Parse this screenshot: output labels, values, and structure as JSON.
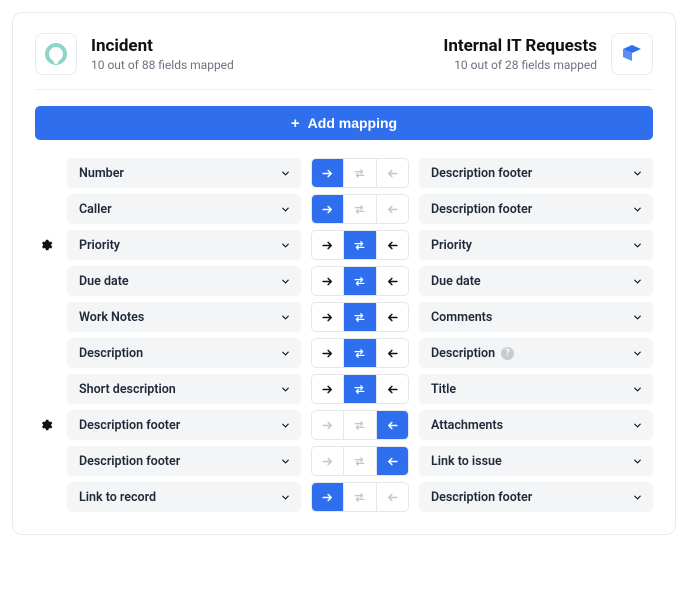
{
  "colors": {
    "primary": "#2f6fed",
    "field_bg": "#f3f5f7",
    "border": "#e9ecef",
    "muted_arrow": "#c3c8cf",
    "dark_arrow": "#111111",
    "text_muted": "#6b7280"
  },
  "header": {
    "left": {
      "title": "Incident",
      "subtitle": "10 out of 88 fields mapped",
      "icon_color": "#8fd4c7"
    },
    "right": {
      "title": "Internal IT Requests",
      "subtitle": "10 out of 28 fields mapped",
      "icon_color": "#2f6fed"
    }
  },
  "add_button": "Add mapping",
  "direction_options": [
    "right",
    "both",
    "left"
  ],
  "rows": [
    {
      "gear": false,
      "left": "Number",
      "right": "Description footer",
      "active": "right",
      "enabled": [
        "right"
      ],
      "info": false
    },
    {
      "gear": false,
      "left": "Caller",
      "right": "Description footer",
      "active": "right",
      "enabled": [
        "right"
      ],
      "info": false
    },
    {
      "gear": true,
      "left": "Priority",
      "right": "Priority",
      "active": "both",
      "enabled": [
        "right",
        "both",
        "left"
      ],
      "info": false
    },
    {
      "gear": false,
      "left": "Due date",
      "right": "Due date",
      "active": "both",
      "enabled": [
        "right",
        "both",
        "left"
      ],
      "info": false
    },
    {
      "gear": false,
      "left": "Work Notes",
      "right": "Comments",
      "active": "both",
      "enabled": [
        "right",
        "both",
        "left"
      ],
      "info": false
    },
    {
      "gear": false,
      "left": "Description",
      "right": "Description",
      "active": "both",
      "enabled": [
        "right",
        "both",
        "left"
      ],
      "info": true
    },
    {
      "gear": false,
      "left": "Short description",
      "right": "Title",
      "active": "both",
      "enabled": [
        "right",
        "both",
        "left"
      ],
      "info": false
    },
    {
      "gear": true,
      "left": "Description footer",
      "right": "Attachments",
      "active": "left",
      "enabled": [
        "left"
      ],
      "info": false
    },
    {
      "gear": false,
      "left": "Description footer",
      "right": "Link to issue",
      "active": "left",
      "enabled": [
        "left"
      ],
      "info": false
    },
    {
      "gear": false,
      "left": "Link to record",
      "right": "Description footer",
      "active": "right",
      "enabled": [
        "right"
      ],
      "info": false
    }
  ]
}
